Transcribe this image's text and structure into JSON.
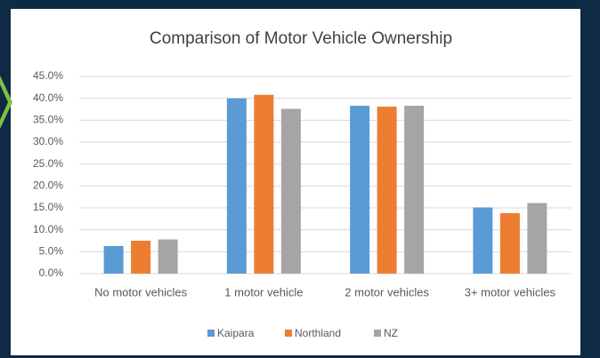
{
  "chart_data": {
    "type": "bar",
    "title": "Comparison of Motor Vehicle Ownership",
    "categories": [
      "No motor vehicles",
      "1 motor vehicle",
      "2 motor vehicles",
      "3+ motor vehicles"
    ],
    "series": [
      {
        "name": "Kaipara",
        "color": "#5b9bd5",
        "values": [
          6.3,
          40.0,
          38.3,
          15.1
        ]
      },
      {
        "name": "Northland",
        "color": "#ed7d31",
        "values": [
          7.5,
          40.8,
          38.1,
          13.8
        ]
      },
      {
        "name": "NZ",
        "color": "#a5a5a5",
        "values": [
          7.8,
          37.6,
          38.3,
          16.1
        ]
      }
    ],
    "ylim": [
      0,
      45
    ],
    "yticks": [
      {
        "value": 0,
        "label": "0.0%"
      },
      {
        "value": 5,
        "label": "5.0%"
      },
      {
        "value": 10,
        "label": "10.0%"
      },
      {
        "value": 15,
        "label": "15.0%"
      },
      {
        "value": 20,
        "label": "20.0%"
      },
      {
        "value": 25,
        "label": "25.0%"
      },
      {
        "value": 30,
        "label": "30.0%"
      },
      {
        "value": 35,
        "label": "35.0%"
      },
      {
        "value": 40,
        "label": "40.0%"
      },
      {
        "value": 45,
        "label": "45.0%"
      }
    ],
    "grid": true,
    "legend": "bottom"
  }
}
